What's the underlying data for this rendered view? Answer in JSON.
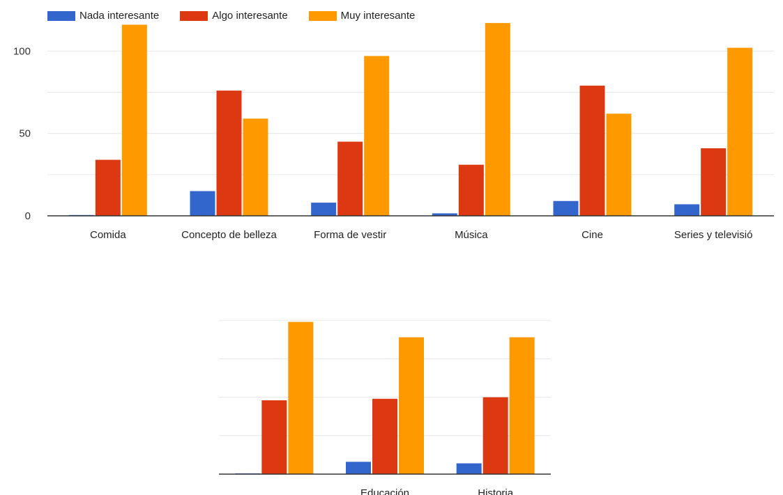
{
  "chart_data": [
    {
      "type": "bar",
      "legend": {
        "position": "top-left",
        "items": [
          {
            "label": "Nada interesante",
            "color": "#3366cc"
          },
          {
            "label": "Algo interesante",
            "color": "#dc3912"
          },
          {
            "label": "Muy interesante",
            "color": "#ff9900"
          }
        ]
      },
      "y_ticks": [
        "0",
        "50",
        "100"
      ],
      "ylim": [
        0,
        120
      ],
      "grid": true,
      "categories": [
        "Comida",
        "Concepto de belleza",
        "Forma de vestir",
        "Música",
        "Cine",
        "Series y televisió"
      ],
      "series": [
        {
          "name": "Nada interesante",
          "color": "#3366cc",
          "values": [
            0.5,
            15,
            8,
            1.5,
            9,
            7
          ]
        },
        {
          "name": "Algo interesante",
          "color": "#dc3912",
          "values": [
            34,
            76,
            45,
            31,
            79,
            41
          ]
        },
        {
          "name": "Muy interesante",
          "color": "#ff9900",
          "values": [
            116,
            59,
            97,
            117,
            62,
            102
          ]
        }
      ]
    },
    {
      "type": "bar",
      "ylim": [
        0,
        120
      ],
      "grid": true,
      "categories": [
        "",
        "Educación",
        "Historia"
      ],
      "series": [
        {
          "name": "Nada interesante",
          "color": "#3366cc",
          "values": [
            0.5,
            8,
            7
          ]
        },
        {
          "name": "Algo interesante",
          "color": "#dc3912",
          "values": [
            48,
            49,
            50
          ]
        },
        {
          "name": "Muy interesante",
          "color": "#ff9900",
          "values": [
            99,
            89,
            89
          ]
        }
      ]
    }
  ]
}
